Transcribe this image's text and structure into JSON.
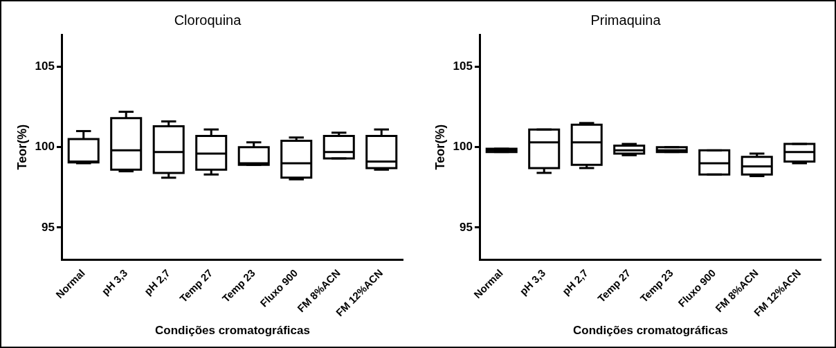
{
  "chart_data": [
    {
      "type": "box",
      "title": "Cloroquina",
      "xlabel": "Condições cromatográficas",
      "ylabel": "Teor(%)",
      "categories": [
        "Normal",
        "pH 3,3",
        "pH 2,7",
        "Temp 27",
        "Temp 23",
        "Fluxo 900",
        "FM 8%ACN",
        "FM 12%ACN"
      ],
      "ylim": [
        93,
        107
      ],
      "yticks": [
        95,
        100,
        105
      ],
      "grid": false,
      "legend": false,
      "boxes": [
        {
          "low": 99.0,
          "q1": 99.05,
          "median": 99.1,
          "q3": 100.5,
          "high": 101.0
        },
        {
          "low": 98.5,
          "q1": 98.6,
          "median": 99.8,
          "q3": 101.8,
          "high": 102.2
        },
        {
          "low": 98.1,
          "q1": 98.4,
          "median": 99.7,
          "q3": 101.3,
          "high": 101.6
        },
        {
          "low": 98.3,
          "q1": 98.6,
          "median": 99.6,
          "q3": 100.7,
          "high": 101.1
        },
        {
          "low": 98.9,
          "q1": 98.9,
          "median": 99.0,
          "q3": 100.0,
          "high": 100.3
        },
        {
          "low": 98.0,
          "q1": 98.1,
          "median": 99.0,
          "q3": 100.4,
          "high": 100.6
        },
        {
          "low": 99.3,
          "q1": 99.3,
          "median": 99.7,
          "q3": 100.7,
          "high": 100.9
        },
        {
          "low": 98.6,
          "q1": 98.7,
          "median": 99.1,
          "q3": 100.7,
          "high": 101.1
        }
      ]
    },
    {
      "type": "box",
      "title": "Primaquina",
      "xlabel": "Condições cromatográficas",
      "ylabel": "Teor(%)",
      "categories": [
        "Normal",
        "pH 3,3",
        "pH 2,7",
        "Temp 27",
        "Temp 23",
        "Fluxo 900",
        "FM 8%ACN",
        "FM 12%ACN"
      ],
      "ylim": [
        93,
        107
      ],
      "yticks": [
        95,
        100,
        105
      ],
      "grid": false,
      "legend": false,
      "boxes": [
        {
          "low": 99.7,
          "q1": 99.7,
          "median": 99.8,
          "q3": 99.9,
          "high": 99.9
        },
        {
          "low": 98.4,
          "q1": 98.7,
          "median": 100.3,
          "q3": 101.1,
          "high": 101.1
        },
        {
          "low": 98.7,
          "q1": 98.9,
          "median": 100.3,
          "q3": 101.4,
          "high": 101.5
        },
        {
          "low": 99.5,
          "q1": 99.6,
          "median": 99.8,
          "q3": 100.1,
          "high": 100.2
        },
        {
          "low": 99.7,
          "q1": 99.7,
          "median": 99.8,
          "q3": 100.0,
          "high": 100.0
        },
        {
          "low": 98.3,
          "q1": 98.3,
          "median": 99.0,
          "q3": 99.8,
          "high": 99.8
        },
        {
          "low": 98.2,
          "q1": 98.3,
          "median": 98.8,
          "q3": 99.4,
          "high": 99.6
        },
        {
          "low": 99.0,
          "q1": 99.1,
          "median": 99.7,
          "q3": 100.2,
          "high": 100.2
        }
      ]
    }
  ]
}
